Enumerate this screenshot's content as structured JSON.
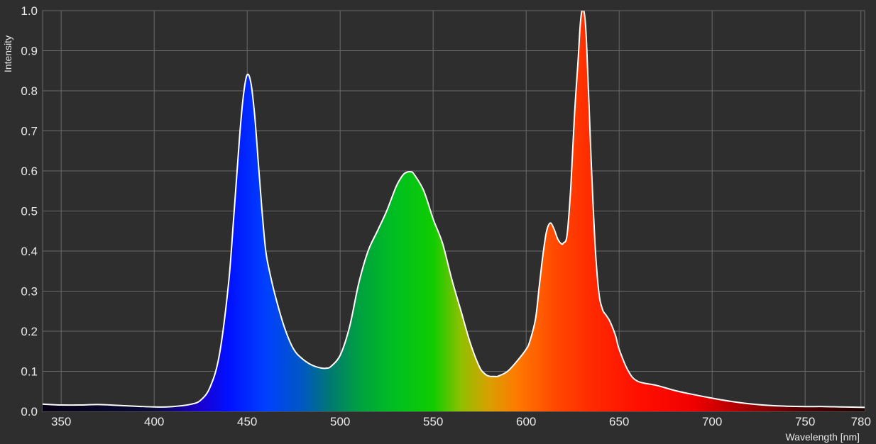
{
  "chart_data": {
    "type": "area",
    "title": "",
    "xlabel": "Wavelength [nm]",
    "ylabel": "Intensity",
    "xlim": [
      340,
      782
    ],
    "ylim": [
      0,
      1.0
    ],
    "x_ticks": [
      350,
      400,
      450,
      500,
      550,
      600,
      650,
      700,
      750,
      780
    ],
    "y_ticks": [
      "0.0",
      "0.1",
      "0.2",
      "0.3",
      "0.4",
      "0.5",
      "0.6",
      "0.7",
      "0.8",
      "0.9",
      "1.0"
    ],
    "grid": true,
    "colors": {
      "background": "#2e2e2e",
      "grid": "#6a6a6a",
      "line": "#ffffff",
      "text": "#e8e8e8"
    },
    "series": [
      {
        "x": [
          340,
          350,
          360,
          370,
          380,
          390,
          400,
          410,
          420,
          425,
          430,
          435,
          440,
          443,
          446,
          448,
          450,
          452,
          454,
          456,
          458,
          460,
          462,
          465,
          470,
          475,
          480,
          485,
          490,
          493,
          495,
          500,
          505,
          510,
          515,
          520,
          525,
          530,
          533,
          535,
          538,
          540,
          545,
          550,
          555,
          560,
          565,
          570,
          575,
          578,
          580,
          583,
          585,
          590,
          595,
          600,
          602,
          605,
          607,
          609,
          611,
          613,
          615,
          617,
          619,
          620,
          622,
          624,
          626,
          628,
          629,
          630,
          631,
          632,
          633,
          634,
          635,
          637,
          639,
          641,
          643,
          645,
          648,
          650,
          655,
          660,
          670,
          680,
          690,
          700,
          710,
          720,
          730,
          740,
          750,
          760,
          770,
          782
        ],
        "y": [
          0.018,
          0.016,
          0.016,
          0.017,
          0.015,
          0.013,
          0.011,
          0.012,
          0.018,
          0.028,
          0.06,
          0.14,
          0.32,
          0.5,
          0.69,
          0.79,
          0.84,
          0.82,
          0.74,
          0.62,
          0.5,
          0.4,
          0.35,
          0.29,
          0.21,
          0.155,
          0.13,
          0.115,
          0.108,
          0.108,
          0.112,
          0.14,
          0.21,
          0.32,
          0.4,
          0.45,
          0.5,
          0.56,
          0.585,
          0.595,
          0.598,
          0.59,
          0.55,
          0.48,
          0.42,
          0.33,
          0.25,
          0.17,
          0.11,
          0.093,
          0.088,
          0.087,
          0.088,
          0.1,
          0.125,
          0.155,
          0.175,
          0.23,
          0.31,
          0.39,
          0.45,
          0.47,
          0.455,
          0.43,
          0.418,
          0.42,
          0.44,
          0.56,
          0.74,
          0.88,
          0.96,
          1.0,
          1.0,
          0.96,
          0.86,
          0.74,
          0.62,
          0.42,
          0.3,
          0.255,
          0.24,
          0.225,
          0.19,
          0.155,
          0.1,
          0.075,
          0.065,
          0.052,
          0.042,
          0.033,
          0.025,
          0.019,
          0.015,
          0.013,
          0.012,
          0.012,
          0.011,
          0.01
        ]
      }
    ]
  }
}
